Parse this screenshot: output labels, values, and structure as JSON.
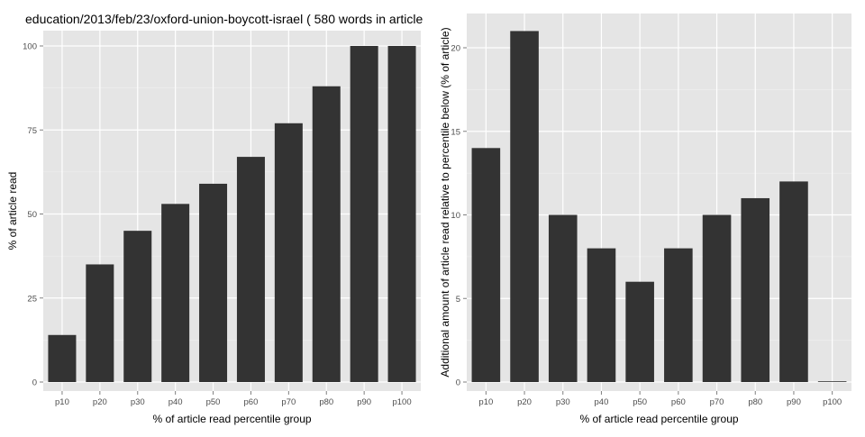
{
  "chart_data": [
    {
      "type": "bar",
      "title": "education/2013/feb/23/oxford-union-boycott-israel ( 580 words in article",
      "xlabel": "% of article read percentile group",
      "ylabel": "% of article read",
      "categories": [
        "p10",
        "p20",
        "p30",
        "p40",
        "p50",
        "p60",
        "p70",
        "p80",
        "p90",
        "p100"
      ],
      "values": [
        14,
        35,
        45,
        53,
        59,
        67,
        77,
        88,
        100,
        100
      ],
      "ylim": [
        0,
        100
      ],
      "yticks": [
        "0",
        "25",
        "50",
        "75",
        "100"
      ],
      "grid": true,
      "colors": {
        "bar": "#333333",
        "panel": "#e5e5e5",
        "grid": "#ffffff",
        "tick_text": "#4d4d4d"
      }
    },
    {
      "type": "bar",
      "title": "",
      "xlabel": "% of article read percentile group",
      "ylabel": "Additional amount of article read relative to percentile below (% of article)",
      "categories": [
        "p10",
        "p20",
        "p30",
        "p40",
        "p50",
        "p60",
        "p70",
        "p80",
        "p90",
        "p100"
      ],
      "values": [
        14,
        21,
        10,
        8,
        6,
        8,
        10,
        11,
        12,
        0
      ],
      "ylim": [
        0,
        21
      ],
      "yticks": [
        "0",
        "5",
        "10",
        "15",
        "20"
      ],
      "grid": true,
      "colors": {
        "bar": "#333333",
        "panel": "#e5e5e5",
        "grid": "#ffffff",
        "tick_text": "#4d4d4d"
      }
    }
  ]
}
